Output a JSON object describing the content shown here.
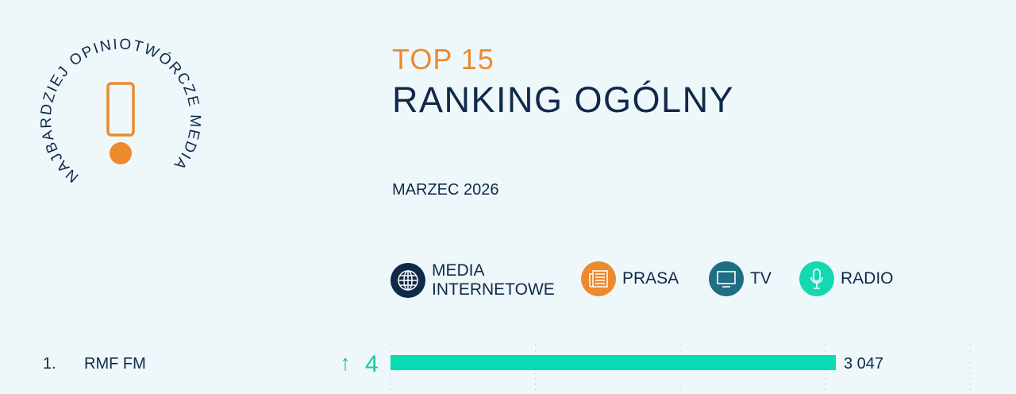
{
  "badge": {
    "circle_text": "NAJBARDZIEJ OPINIOTWÓRCZE MEDIA"
  },
  "header": {
    "top": "TOP 15",
    "title": "RANKING OGÓLNY",
    "date": "MARZEC 2026"
  },
  "legend": [
    {
      "label_line1": "MEDIA",
      "label_line2": "INTERNETOWE",
      "icon": "globe-icon",
      "color": "#10294a"
    },
    {
      "label_line1": "PRASA",
      "icon": "newspaper-icon",
      "color": "#ec8a2e"
    },
    {
      "label_line1": "TV",
      "icon": "tv-icon",
      "color": "#1e6e84"
    },
    {
      "label_line1": "RADIO",
      "icon": "microphone-icon",
      "color": "#14d8b0"
    }
  ],
  "chart_data": {
    "type": "bar",
    "orientation": "horizontal",
    "grid": true,
    "rows": [
      {
        "rank": "1.",
        "name": "RMF FM",
        "change": "4",
        "change_direction": "up",
        "value": 3047,
        "value_label": "3 047",
        "category": "RADIO",
        "color": "#08dbb2"
      }
    ]
  }
}
